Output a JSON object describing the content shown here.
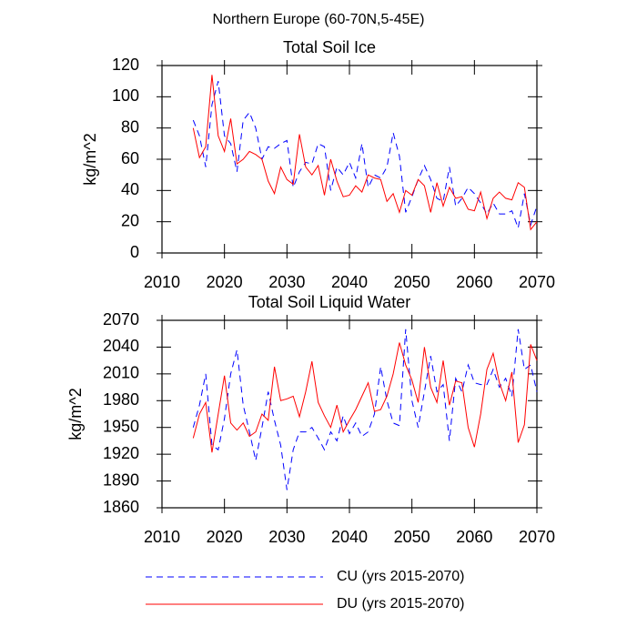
{
  "title": "Northern Europe (60-70N,5-45E)",
  "chart_data": [
    {
      "type": "line",
      "title": "Total Soil Ice",
      "ylabel": "kg/m^2",
      "x": [
        2015,
        2016,
        2017,
        2018,
        2019,
        2020,
        2021,
        2022,
        2023,
        2024,
        2025,
        2026,
        2027,
        2028,
        2029,
        2030,
        2031,
        2032,
        2033,
        2034,
        2035,
        2036,
        2037,
        2038,
        2039,
        2040,
        2041,
        2042,
        2043,
        2044,
        2045,
        2046,
        2047,
        2048,
        2049,
        2050,
        2051,
        2052,
        2053,
        2054,
        2055,
        2056,
        2057,
        2058,
        2059,
        2060,
        2061,
        2062,
        2063,
        2064,
        2065,
        2066,
        2067,
        2068,
        2069,
        2070
      ],
      "series": [
        {
          "name": "CU (yrs 2015-2070)",
          "color": "#0000ff",
          "dash": true,
          "values": [
            85,
            75,
            55,
            95,
            110,
            75,
            70,
            52,
            85,
            90,
            80,
            60,
            68,
            67,
            70,
            72,
            42,
            52,
            58,
            57,
            70,
            68,
            40,
            55,
            50,
            58,
            48,
            70,
            42,
            50,
            48,
            55,
            77,
            62,
            26,
            36,
            47,
            56,
            47,
            35,
            33,
            55,
            30,
            35,
            42,
            38,
            32,
            25,
            32,
            25,
            25,
            27,
            16,
            38,
            18,
            30
          ]
        },
        {
          "name": "DU (yrs 2015-2070)",
          "color": "#ff0000",
          "dash": false,
          "values": [
            80,
            61,
            68,
            114,
            75,
            65,
            86,
            57,
            60,
            65,
            63,
            60,
            46,
            38,
            55,
            47,
            44,
            76,
            55,
            50,
            56,
            37,
            60,
            46,
            36,
            37,
            43,
            39,
            50,
            48,
            47,
            33,
            38,
            26,
            40,
            37,
            47,
            43,
            26,
            45,
            30,
            42,
            35,
            36,
            28,
            27,
            39,
            22,
            35,
            39,
            35,
            34,
            45,
            42,
            15,
            20
          ]
        }
      ],
      "xlim": [
        2010,
        2070
      ],
      "xticks": [
        2010,
        2020,
        2030,
        2040,
        2050,
        2060,
        2070
      ],
      "ylim": [
        0,
        120
      ],
      "yticks": [
        0,
        20,
        40,
        60,
        80,
        100,
        120
      ]
    },
    {
      "type": "line",
      "title": "Total Soil Liquid Water",
      "ylabel": "kg/m^2",
      "x": [
        2015,
        2016,
        2017,
        2018,
        2019,
        2020,
        2021,
        2022,
        2023,
        2024,
        2025,
        2026,
        2027,
        2028,
        2029,
        2030,
        2031,
        2032,
        2033,
        2034,
        2035,
        2036,
        2037,
        2038,
        2039,
        2040,
        2041,
        2042,
        2043,
        2044,
        2045,
        2046,
        2047,
        2048,
        2049,
        2050,
        2051,
        2052,
        2053,
        2054,
        2055,
        2056,
        2057,
        2058,
        2059,
        2060,
        2061,
        2062,
        2063,
        2064,
        2065,
        2066,
        2067,
        2068,
        2069,
        2070
      ],
      "series": [
        {
          "color": "#0000ff",
          "dash": true,
          "values": [
            1950,
            1975,
            2010,
            1930,
            1925,
            1960,
            2010,
            2037,
            1975,
            1945,
            1913,
            1950,
            1990,
            1958,
            1930,
            1880,
            1925,
            1945,
            1945,
            1950,
            1938,
            1925,
            1945,
            1935,
            1963,
            1943,
            1955,
            1940,
            1945,
            1965,
            2018,
            1980,
            1955,
            1952,
            2060,
            1980,
            1950,
            1990,
            2030,
            1990,
            1998,
            1935,
            2005,
            1990,
            2020,
            2000,
            1998,
            1998,
            2015,
            1995,
            2005,
            1985,
            2060,
            2015,
            2020,
            1990
          ]
        },
        {
          "color": "#ff0000",
          "dash": false,
          "values": [
            1938,
            1965,
            1978,
            1922,
            1965,
            2008,
            1955,
            1947,
            1955,
            1940,
            1945,
            1965,
            1958,
            2018,
            1980,
            1982,
            1985,
            1962,
            1990,
            2024,
            1978,
            1963,
            1950,
            1975,
            1945,
            1958,
            1970,
            1985,
            2000,
            1968,
            1970,
            1985,
            2010,
            2045,
            2020,
            2003,
            1978,
            2040,
            1995,
            1978,
            2025,
            1975,
            2002,
            2000,
            1950,
            1928,
            1965,
            2015,
            2033,
            2000,
            1980,
            2012,
            1933,
            1953,
            2043,
            2025
          ]
        }
      ],
      "xlim": [
        2010,
        2070
      ],
      "xticks": [
        2010,
        2020,
        2030,
        2040,
        2050,
        2060,
        2070
      ],
      "ylim": [
        1860,
        2070
      ],
      "yticks": [
        1860,
        1890,
        1920,
        1950,
        1980,
        2010,
        2040,
        2070
      ]
    }
  ]
}
